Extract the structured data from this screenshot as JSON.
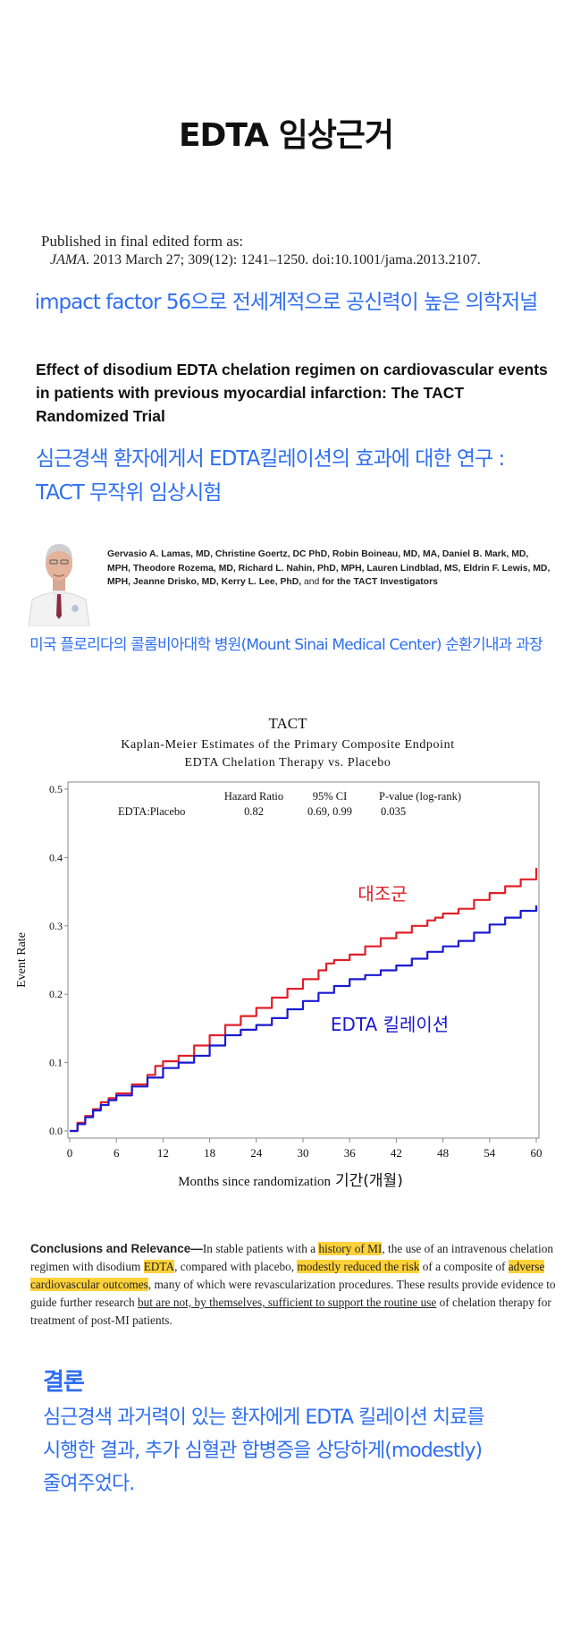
{
  "page_title": "EDTA 임상근거",
  "publication": {
    "line1": "Published in final edited form as:",
    "journal": "JAMA",
    "citation": ". 2013 March 27; 309(12): 1241–1250. doi:10.1001/jama.2013.2107."
  },
  "impact_note": "impact factor 56으로 전세계적으로 공신력이 높은 의학저널",
  "paper_title": "Effect of disodium EDTA chelation regimen on cardiovascular events in patients with previous myocardial infarction: The TACT Randomized Trial",
  "korean_title": {
    "line1": "심근경색 환자에게서 EDTA킬레이션의 효과에 대한 연구 :",
    "line2": "TACT 무작위 임상시험"
  },
  "authors": {
    "names": "Gervasio A. Lamas, MD, Christine Goertz, DC PhD, Robin Boineau, MD, MA, Daniel B. Mark, MD, MPH, Theodore Rozema, MD, Richard L. Nahin, PhD, MPH, Lauren Lindblad, MS, Eldrin F. Lewis, MD, MPH, Jeanne Drisko, MD, Kerry L. Lee, PhD,",
    "and": "and",
    "group": "for the TACT Investigators"
  },
  "affiliation": "미국 플로리다의 콜롬비아대학 병원(Mount Sinai Medical Center) 순환기내과 과장",
  "chart_data": {
    "type": "line",
    "title": "TACT",
    "subtitle1": "Kaplan-Meier Estimates of the Primary Composite Endpoint",
    "subtitle2": "EDTA Chelation Therapy vs. Placebo",
    "xlabel": "Months since randomization",
    "xlabel_ko": "기간(개월)",
    "ylabel": "Event Rate",
    "xlim": [
      0,
      60
    ],
    "ylim": [
      0,
      0.5
    ],
    "xticks": [
      "0",
      "6",
      "12",
      "18",
      "24",
      "30",
      "36",
      "42",
      "48",
      "54",
      "60"
    ],
    "yticks": [
      "0.0",
      "0.1",
      "0.2",
      "0.3",
      "0.4",
      "0.5"
    ],
    "stats_table": {
      "headers": [
        "Hazard Ratio",
        "95% CI",
        "P-value (log-rank)"
      ],
      "row_label": "EDTA:Placebo",
      "values": [
        "0.82",
        "0.69, 0.99",
        "0.035"
      ]
    },
    "series": [
      {
        "name": "대조군",
        "color": "#e0202a",
        "x": [
          0,
          1,
          2,
          3,
          4,
          5,
          6,
          8,
          10,
          11,
          12,
          14,
          16,
          18,
          20,
          22,
          24,
          26,
          28,
          30,
          32,
          33,
          34,
          36,
          38,
          40,
          42,
          44,
          46,
          47,
          48,
          50,
          52,
          54,
          56,
          58,
          60
        ],
        "y": [
          0.0,
          0.012,
          0.022,
          0.032,
          0.042,
          0.048,
          0.055,
          0.068,
          0.082,
          0.095,
          0.102,
          0.11,
          0.125,
          0.14,
          0.155,
          0.168,
          0.18,
          0.195,
          0.208,
          0.222,
          0.235,
          0.245,
          0.25,
          0.258,
          0.27,
          0.282,
          0.29,
          0.3,
          0.308,
          0.312,
          0.318,
          0.325,
          0.338,
          0.348,
          0.358,
          0.368,
          0.385
        ]
      },
      {
        "name": "EDTA 킬레이션",
        "color": "#1a1ad0",
        "x": [
          0,
          1,
          2,
          3,
          4,
          5,
          6,
          8,
          10,
          12,
          14,
          16,
          18,
          20,
          22,
          24,
          26,
          28,
          30,
          32,
          34,
          36,
          38,
          40,
          42,
          44,
          46,
          48,
          50,
          52,
          54,
          56,
          58,
          60
        ],
        "y": [
          0.0,
          0.01,
          0.02,
          0.03,
          0.038,
          0.045,
          0.052,
          0.065,
          0.078,
          0.092,
          0.1,
          0.11,
          0.125,
          0.14,
          0.148,
          0.155,
          0.165,
          0.178,
          0.19,
          0.202,
          0.212,
          0.222,
          0.228,
          0.235,
          0.242,
          0.252,
          0.262,
          0.27,
          0.278,
          0.29,
          0.302,
          0.312,
          0.322,
          0.33
        ]
      }
    ]
  },
  "conclusions": {
    "lead": "Conclusions and Relevance—",
    "t1": "In stable patients with a ",
    "h1": "history of MI",
    "t2": ", the use of an intravenous chelation regimen with disodium ",
    "h2": "EDTA",
    "t3": ", compared with placebo, ",
    "h3": "modestly reduced the risk",
    "t4": " of a composite of ",
    "h4": "adverse cardiovascular outcomes",
    "t5": ", many of which were revascularization procedures. These results provide evidence to guide further research ",
    "u1": "but are not, by themselves, sufficient to support the routine use",
    "t6": " of chelation therapy for treatment of post-MI patients."
  },
  "result": {
    "heading": "결론",
    "line1": "심근경색 과거력이 있는 환자에게 EDTA 킬레이션 치료를",
    "line2": "시행한 결과, 추가 심혈관 합병증을 상당하게(modestly)",
    "line3": "줄여주었다."
  }
}
